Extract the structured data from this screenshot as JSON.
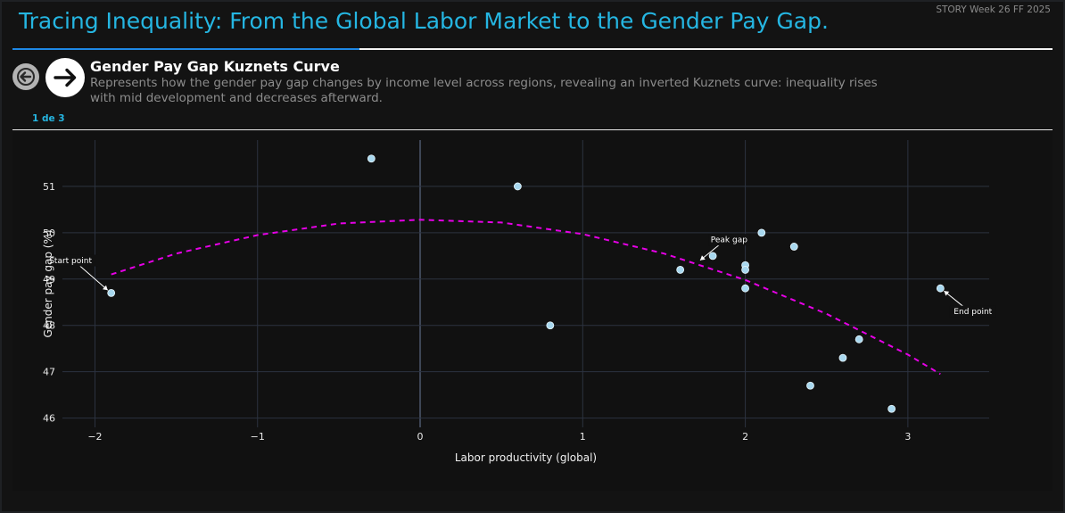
{
  "story": {
    "title": "Tracing Inequality: From the Global Labor Market to the Gender Pay Gap.",
    "meta": "STORY Week 26 FF 2025"
  },
  "slide": {
    "title": "Gender Pay Gap Kuznets Curve",
    "description": "Represents how the gender pay gap changes by income level across regions, revealing an inverted Kuznets curve: inequality rises with mid development and decreases afterward.",
    "counter": "1 de 3",
    "prev_icon": "arrow-left-icon",
    "next_icon": "arrow-right-icon"
  },
  "colors": {
    "accent": "#25b6e2",
    "progress": "#1e88e5",
    "point_fill": "#a8d8ef",
    "trend": "#e600e6",
    "grid": "#2c3340"
  },
  "chart_data": {
    "type": "scatter",
    "title": "",
    "xlabel": "Labor productivity (global)",
    "ylabel": "Gender pay gap (%)",
    "xlim": [
      -2.2,
      3.5
    ],
    "ylim": [
      45.8,
      52.0
    ],
    "xticks": [
      -2,
      -1,
      0,
      1,
      2,
      3
    ],
    "xtick_labels": [
      "−2",
      "−1",
      "0",
      "1",
      "2",
      "3"
    ],
    "yticks": [
      46,
      47,
      48,
      49,
      50,
      51
    ],
    "grid": true,
    "points": {
      "x": [
        -1.9,
        -0.3,
        0.6,
        0.8,
        1.6,
        1.8,
        2.0,
        2.0,
        2.0,
        2.1,
        2.3,
        2.4,
        2.6,
        2.7,
        2.9,
        3.2
      ],
      "y": [
        48.7,
        51.6,
        51.0,
        48.0,
        49.2,
        49.5,
        49.3,
        49.2,
        48.8,
        50.0,
        49.7,
        46.7,
        47.3,
        47.7,
        46.2,
        48.8
      ]
    },
    "trend_line": {
      "style": "dashed",
      "x": [
        -1.9,
        -1.5,
        -1.0,
        -0.5,
        0.0,
        0.5,
        1.0,
        1.5,
        2.0,
        2.5,
        3.0,
        3.2
      ],
      "y": [
        49.1,
        49.55,
        49.95,
        50.2,
        50.28,
        50.22,
        49.97,
        49.55,
        48.98,
        48.25,
        47.37,
        46.95
      ]
    },
    "annotations": [
      {
        "text": "Start point",
        "x": -1.9,
        "y": 48.7,
        "label_x": -2.15,
        "label_y": 49.4
      },
      {
        "text": "Peak gap",
        "x": 1.7,
        "y": 49.35,
        "label_x": 1.9,
        "label_y": 49.85
      },
      {
        "text": "End point",
        "x": 3.2,
        "y": 48.8,
        "label_x": 3.4,
        "label_y": 48.3
      }
    ]
  }
}
